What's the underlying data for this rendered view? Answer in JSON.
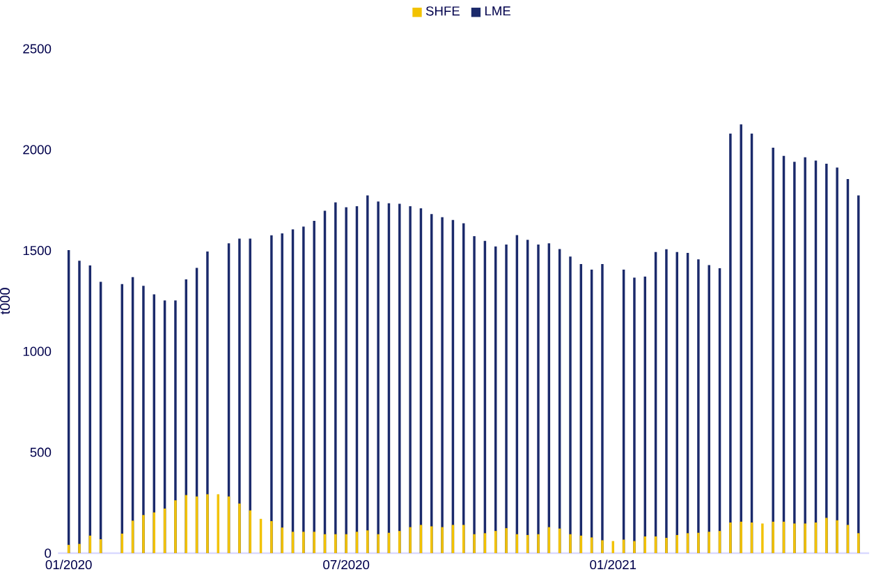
{
  "chart_data": {
    "type": "bar",
    "ylabel": "t000",
    "legend": "top",
    "categories": [
      "01/2020",
      null,
      null,
      null,
      null,
      null,
      null,
      null,
      null,
      null,
      null,
      null,
      null,
      null,
      null,
      null,
      null,
      null,
      null,
      null,
      null,
      null,
      null,
      null,
      null,
      null,
      "07/2020",
      null,
      null,
      null,
      null,
      null,
      null,
      null,
      null,
      null,
      null,
      null,
      null,
      null,
      null,
      null,
      null,
      null,
      null,
      null,
      null,
      null,
      null,
      null,
      null,
      "01/2021",
      null,
      null,
      null,
      null,
      null,
      null,
      null,
      null,
      null,
      null,
      null,
      null,
      null,
      null,
      null,
      null,
      null,
      null,
      null,
      null,
      null,
      null,
      null
    ],
    "series": [
      {
        "name": "SHFE",
        "color": "#f2c200",
        "values": [
          41,
          46,
          87,
          69,
          null,
          97,
          161,
          189,
          202,
          221,
          262,
          288,
          281,
          292,
          292,
          281,
          246,
          212,
          170,
          159,
          127,
          106,
          106,
          106,
          94,
          94,
          94,
          106,
          113,
          94,
          101,
          110,
          129,
          140,
          133,
          129,
          140,
          140,
          94,
          99,
          110,
          124,
          94,
          90,
          94,
          129,
          122,
          94,
          87,
          78,
          64,
          60,
          67,
          60,
          83,
          83,
          76,
          90,
          99,
          101,
          106,
          110,
          152,
          156,
          152,
          147,
          156,
          156,
          147,
          147,
          152,
          175,
          163,
          140,
          99
        ]
      },
      {
        "name": "LME",
        "color": "#1b2a6b",
        "values": [
          1502,
          1449,
          1426,
          1345,
          null,
          1334,
          1368,
          1325,
          1283,
          1253,
          1253,
          1357,
          1414,
          1495,
          null,
          1536,
          1559,
          1559,
          null,
          1575,
          1585,
          1605,
          1619,
          1647,
          1697,
          1739,
          1714,
          1720,
          1773,
          1743,
          1734,
          1732,
          1720,
          1709,
          1681,
          1665,
          1651,
          1635,
          1571,
          1548,
          1520,
          1530,
          1576,
          1553,
          1530,
          1536,
          1507,
          1470,
          1433,
          1405,
          1433,
          null,
          1405,
          1366,
          1371,
          1493,
          1506,
          1493,
          1488,
          1456,
          1428,
          1412,
          2080,
          2125,
          2080,
          null,
          2010,
          1969,
          1940,
          1962,
          1946,
          1930,
          1911,
          1854,
          1773
        ]
      }
    ],
    "ylim": [
      0,
      2500
    ],
    "yticks": [
      0,
      500,
      1000,
      1500,
      2000,
      2500
    ]
  }
}
